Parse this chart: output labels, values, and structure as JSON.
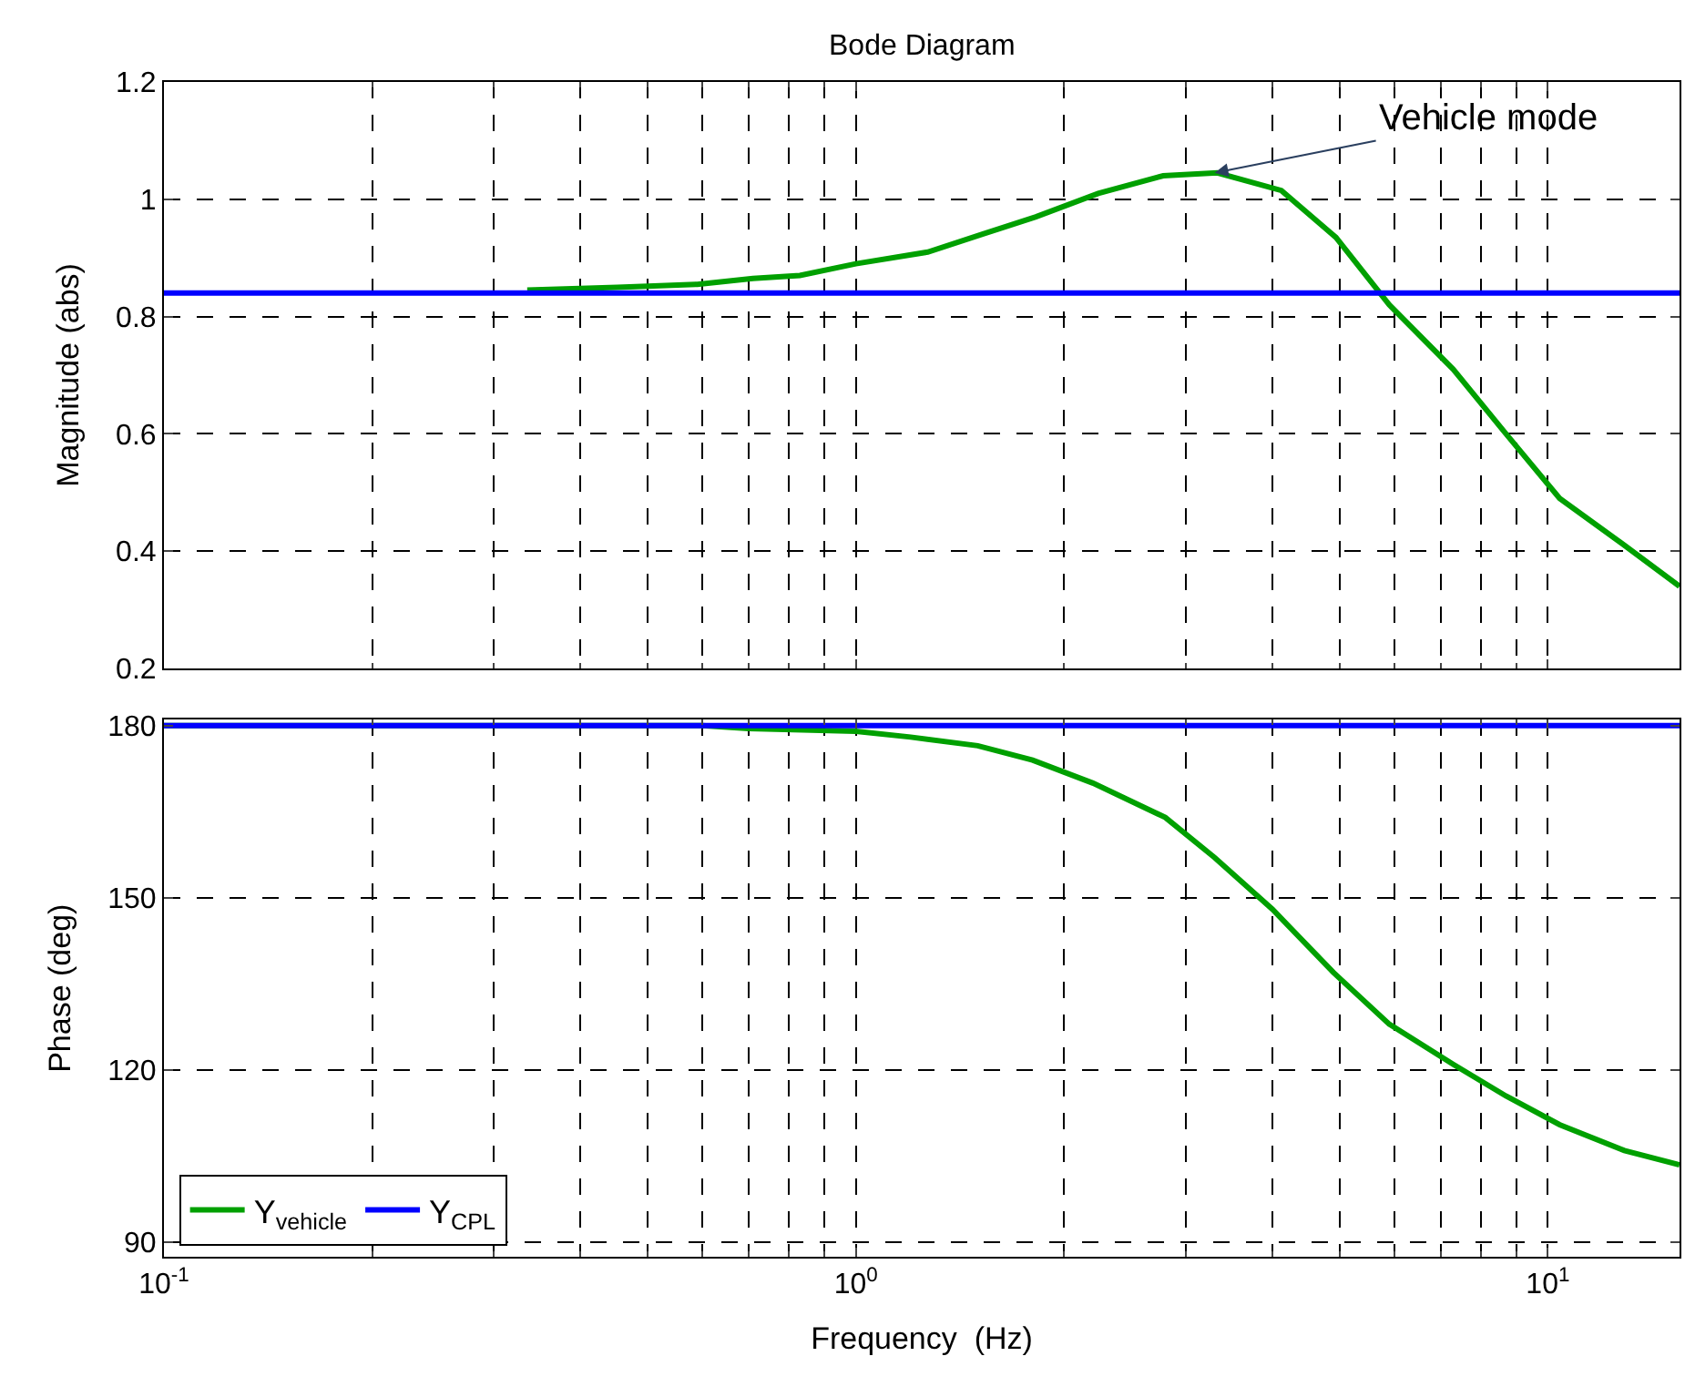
{
  "chart_data": [
    {
      "type": "line",
      "title": "Bode Diagram",
      "ylabel": "Magnitude (abs)",
      "tick_labels": "y",
      "grid": true,
      "log": "x",
      "line_style": "solid",
      "marker": "none",
      "xlim": [
        0.1,
        15.5
      ],
      "xticks": [
        {
          "value": 0.1,
          "label": "10$^{-1}$"
        },
        {
          "value": 1,
          "label": "10$^{0}$"
        },
        {
          "value": 10,
          "label": "10$^{1}$"
        }
      ],
      "ylim": [
        0.2,
        1.2
      ],
      "yticks": [
        0.2,
        0.4,
        0.6,
        0.8,
        {
          "value": 1,
          "label": "1"
        },
        1.2
      ],
      "annotations": [
        {
          "text": "Vehicle mode",
          "x": 3.3,
          "y": 1.045
        }
      ],
      "series": [
        {
          "color": "#00a000",
          "x": [
            0.335,
            0.452,
            0.59,
            0.71,
            0.83,
            1.0,
            1.27,
            1.52,
            1.82,
            2.24,
            2.78,
            3.33,
            4.12,
            4.94,
            5.9,
            7.3,
            8.7,
            10.4,
            12.9,
            15.5
          ],
          "values": [
            0.845,
            0.85,
            0.855,
            0.865,
            0.87,
            0.89,
            0.91,
            0.94,
            0.97,
            1.01,
            1.04,
            1.045,
            1.015,
            0.935,
            0.82,
            0.71,
            0.6,
            0.49,
            0.41,
            0.34
          ]
        },
        {
          "color": "#0000ff",
          "x": [
            0.1,
            15.5
          ],
          "values": [
            0.84,
            0.84
          ]
        }
      ]
    },
    {
      "type": "line",
      "xlabel": "Frequency  (Hz)",
      "ylabel": "Phase (deg)",
      "grid": true,
      "log": "x",
      "legend": "bottom left",
      "line_style": "solid",
      "marker": "none",
      "xlim": [
        0.1,
        15.5
      ],
      "xticks": [
        {
          "value": 0.1,
          "label": "10$^{-1}$"
        },
        {
          "value": 1,
          "label": "10$^{0}$"
        },
        {
          "value": 10,
          "label": "10$^{1}$"
        }
      ],
      "ylim": [
        87.5,
        181
      ],
      "yticks": [
        90,
        120,
        150,
        180
      ],
      "series": [
        {
          "name": "Y$_{vehicle}$",
          "color": "#00a000",
          "x": [
            0.1,
            0.6,
            0.7,
            1.0,
            1.2,
            1.5,
            1.8,
            2.2,
            2.8,
            3.3,
            4.0,
            4.9,
            5.9,
            7.3,
            8.7,
            10.4,
            12.9,
            15.5
          ],
          "values": [
            180,
            180,
            179.5,
            179,
            178,
            176.5,
            174,
            170,
            164,
            157,
            148,
            137,
            128,
            121,
            115.5,
            110.5,
            106,
            103.5
          ]
        },
        {
          "name": "Y$_{CPL}$",
          "color": "#0000ff",
          "x": [
            0.1,
            15.5
          ],
          "values": [
            180,
            180
          ]
        }
      ]
    }
  ]
}
